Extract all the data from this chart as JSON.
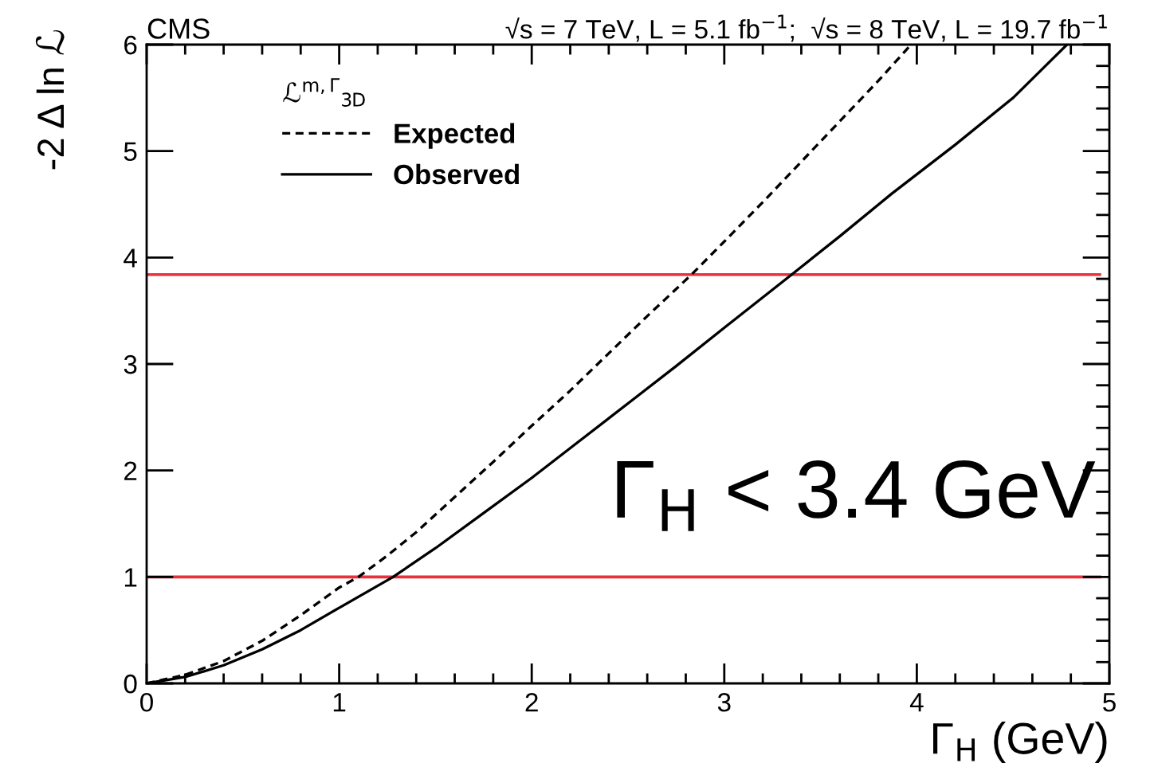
{
  "chart_data": {
    "type": "line",
    "title": "CMS",
    "subtitle": "√s = 7 TeV, L = 5.1 fb$^{−1}$;  √s = 8 TeV, L = 19.7 fb$^{−1}$",
    "xlabel": "Γ$_{H}$ (GeV)",
    "ylabel": "-2 Δ ln ℒ",
    "legend_title": "ℒ$^{m,Γ}$$_{3D}$",
    "annotations": [
      "Γ$_{H}$ < 3.4 GeV"
    ],
    "series": [
      {
        "name": "Expected",
        "color": "#000000",
        "line_style": "dashed",
        "x": [
          0,
          0.2,
          0.4,
          0.6,
          0.8,
          1.0,
          1.1,
          1.25,
          1.4,
          1.6,
          1.8,
          2.0,
          2.2,
          2.4,
          2.6,
          2.83,
          3.0,
          3.2,
          3.4,
          3.6,
          3.8,
          3.97
        ],
        "values": [
          0,
          0.08,
          0.21,
          0.4,
          0.64,
          0.9,
          1.0,
          1.2,
          1.42,
          1.75,
          2.08,
          2.42,
          2.75,
          3.1,
          3.45,
          3.84,
          4.15,
          4.52,
          4.9,
          5.28,
          5.66,
          6.0
        ]
      },
      {
        "name": "Observed",
        "color": "#000000",
        "line_style": "solid",
        "x": [
          0,
          0.2,
          0.4,
          0.6,
          0.8,
          1.0,
          1.28,
          1.5,
          1.75,
          2.0,
          2.25,
          2.5,
          2.75,
          3.0,
          3.35,
          3.6,
          3.87,
          4.2,
          4.5,
          4.78
        ],
        "values": [
          0,
          0.06,
          0.17,
          0.32,
          0.5,
          0.71,
          1.0,
          1.27,
          1.6,
          1.93,
          2.28,
          2.63,
          2.98,
          3.34,
          3.84,
          4.2,
          4.6,
          5.06,
          5.5,
          6.0
        ]
      }
    ],
    "xlim": [
      0,
      5
    ],
    "ylim": [
      0,
      6
    ],
    "xticks": [
      0,
      1,
      2,
      3,
      4,
      5
    ],
    "yticks": [
      0,
      1,
      2,
      3,
      4,
      5,
      6
    ],
    "ref_lines": [
      {
        "axis": "y",
        "value": 1,
        "color": "#e8313c"
      },
      {
        "axis": "y",
        "value": 3.84,
        "color": "#e8313c"
      }
    ],
    "legend": "top left",
    "grid": false
  }
}
